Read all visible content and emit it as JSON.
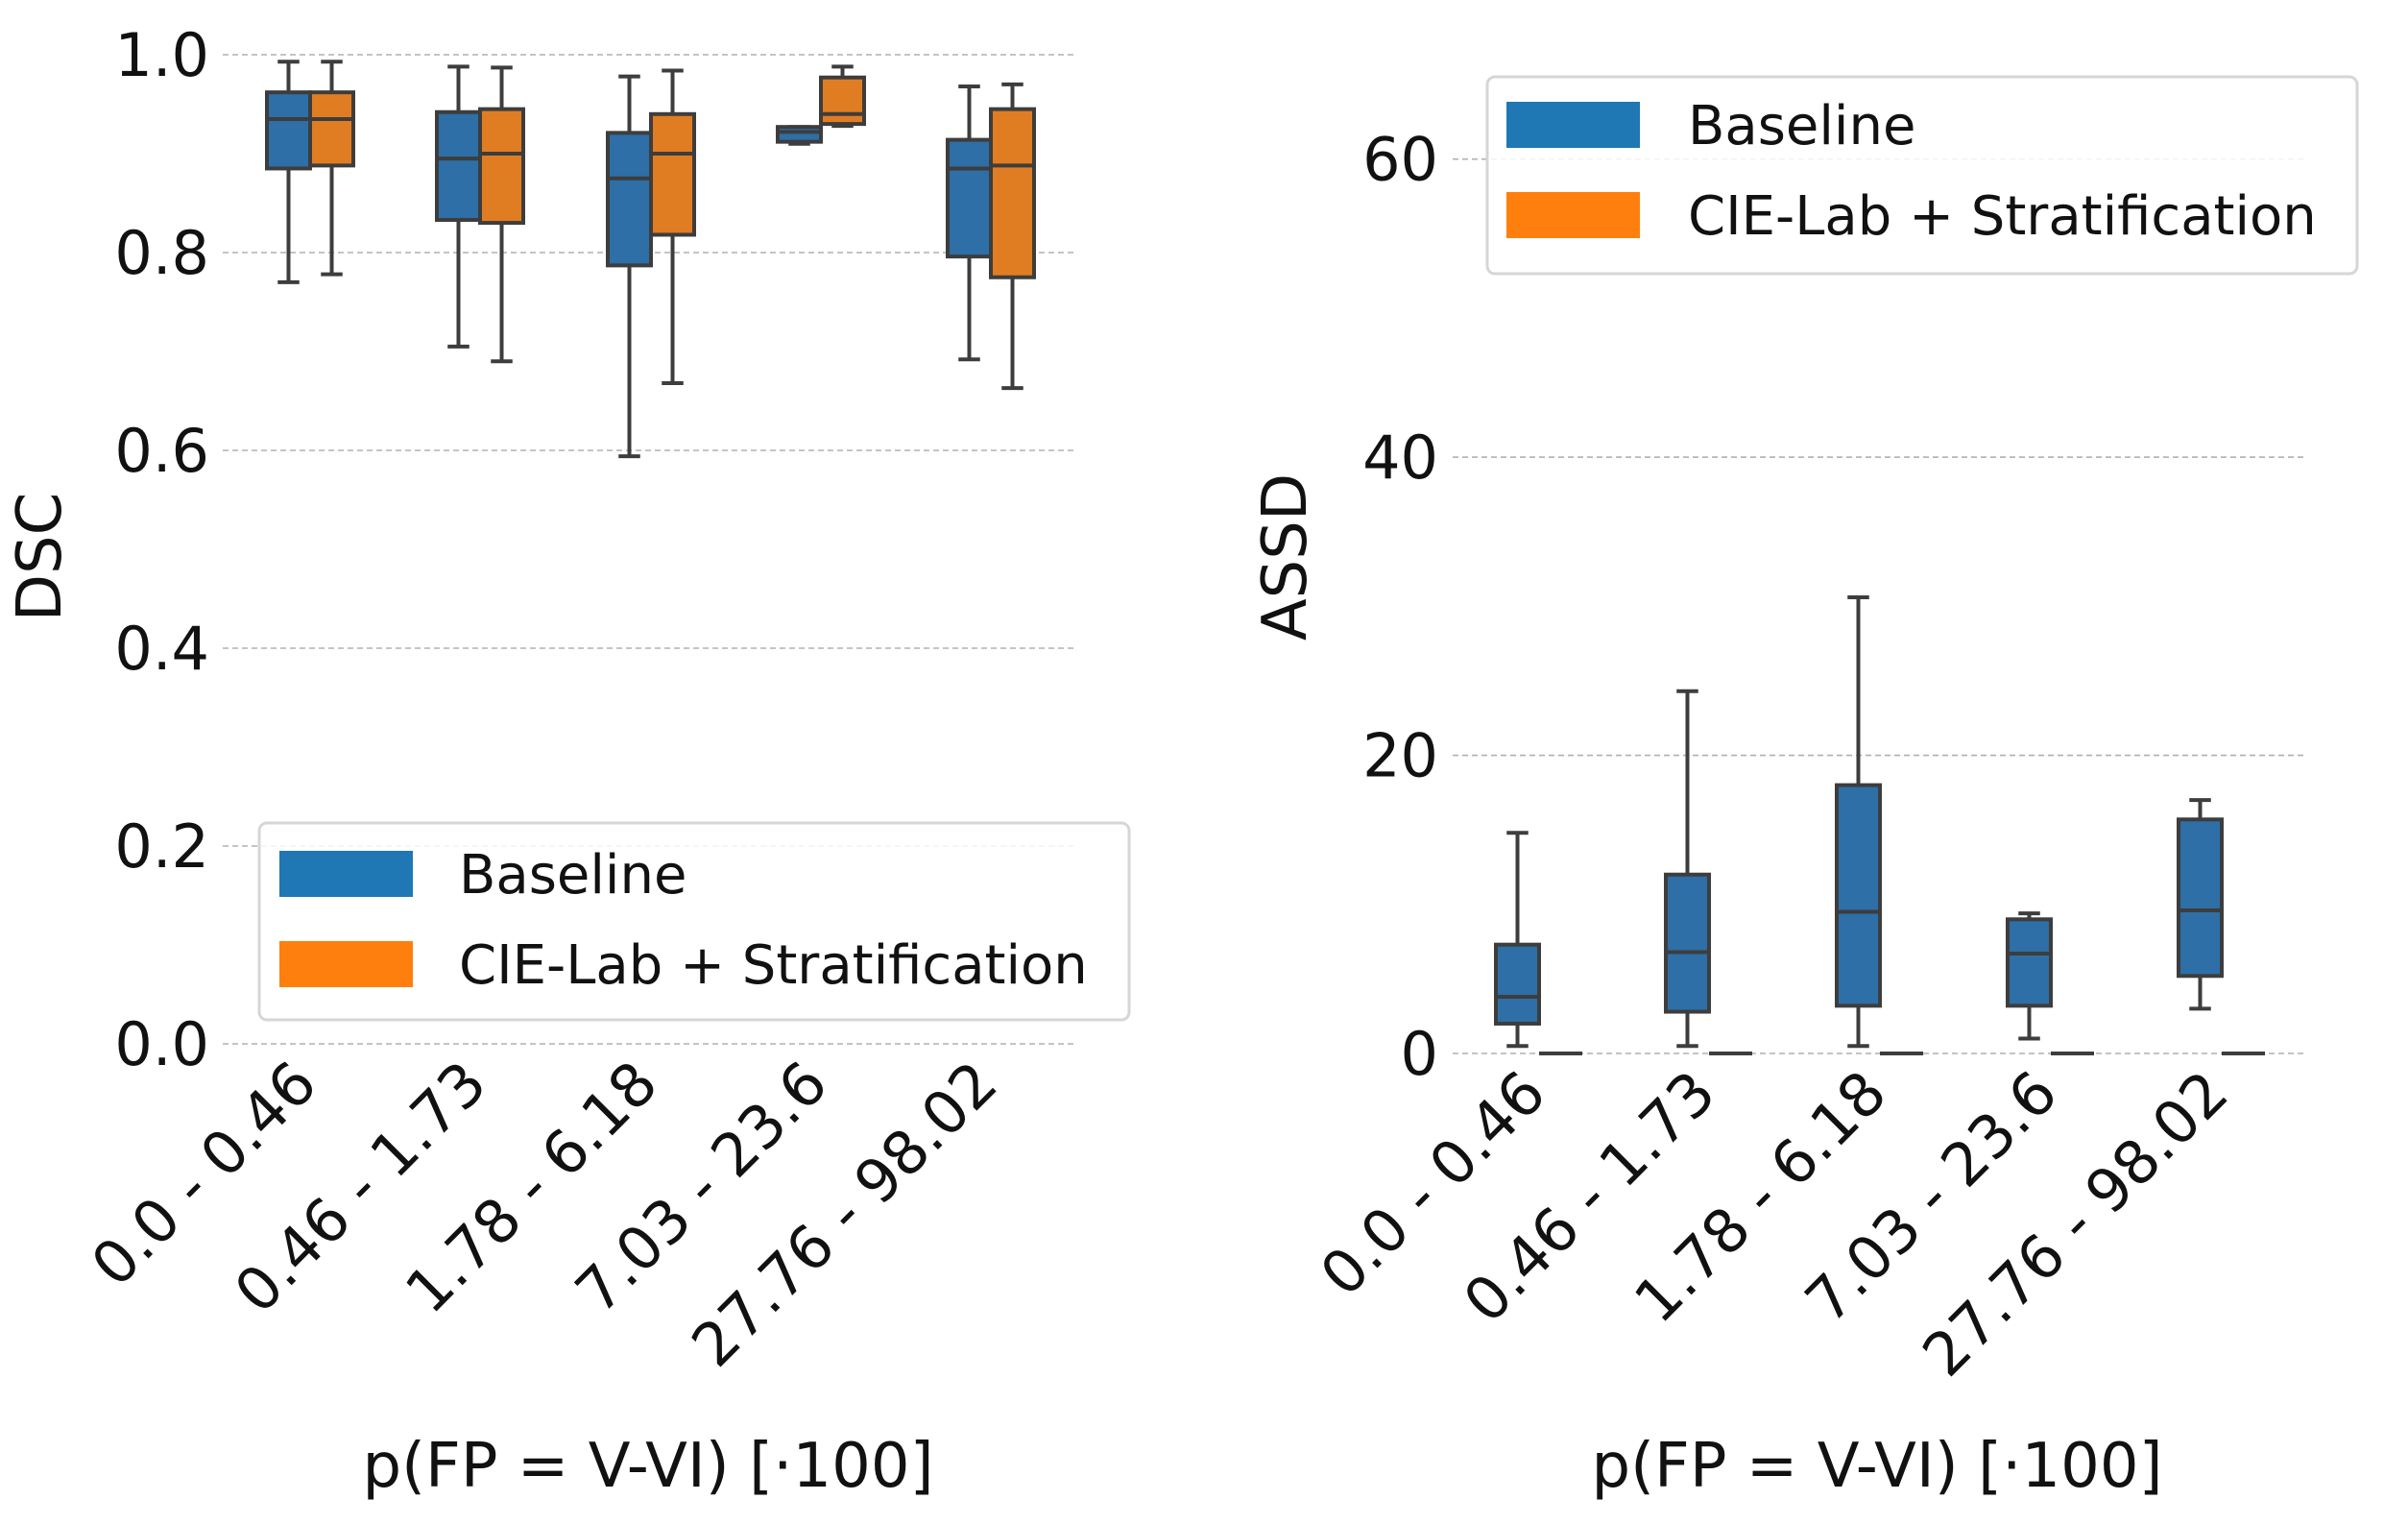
{
  "chart_data": [
    {
      "type": "box",
      "ylabel": "DSC",
      "xlabel": "p(FP = V-VI) [·100]",
      "categories": [
        "0.0 - 0.46",
        "0.46 - 1.73",
        "1.78 - 6.18",
        "7.03 - 23.6",
        "27.76 - 98.02"
      ],
      "ylim": [
        0.0,
        1.0
      ],
      "yticks": [
        "0.0",
        "0.2",
        "0.4",
        "0.6",
        "0.8",
        "1.0"
      ],
      "grid": true,
      "legend_position": "lower-right",
      "series": [
        {
          "name": "Baseline",
          "color": "#2d6fa6",
          "boxes": [
            {
              "whislo": 0.77,
              "q1": 0.885,
              "med": 0.935,
              "q3": 0.962,
              "whishi": 0.993
            },
            {
              "whislo": 0.705,
              "q1": 0.833,
              "med": 0.895,
              "q3": 0.942,
              "whishi": 0.988
            },
            {
              "whislo": 0.594,
              "q1": 0.787,
              "med": 0.875,
              "q3": 0.921,
              "whishi": 0.978
            },
            {
              "whislo": 0.91,
              "q1": 0.912,
              "med": 0.922,
              "q3": 0.927,
              "whishi": 0.927
            },
            {
              "whislo": 0.692,
              "q1": 0.796,
              "med": 0.885,
              "q3": 0.914,
              "whishi": 0.968
            }
          ]
        },
        {
          "name": "CIE-Lab + Stratification",
          "color": "#e07d22",
          "boxes": [
            {
              "whislo": 0.778,
              "q1": 0.888,
              "med": 0.935,
              "q3": 0.962,
              "whishi": 0.993
            },
            {
              "whislo": 0.69,
              "q1": 0.83,
              "med": 0.9,
              "q3": 0.945,
              "whishi": 0.987
            },
            {
              "whislo": 0.668,
              "q1": 0.818,
              "med": 0.9,
              "q3": 0.94,
              "whishi": 0.984
            },
            {
              "whislo": 0.928,
              "q1": 0.93,
              "med": 0.94,
              "q3": 0.977,
              "whishi": 0.988
            },
            {
              "whislo": 0.663,
              "q1": 0.775,
              "med": 0.888,
              "q3": 0.945,
              "whishi": 0.97
            }
          ]
        }
      ]
    },
    {
      "type": "box",
      "ylabel": "ASSD",
      "xlabel": "p(FP = V-VI) [·100]",
      "categories": [
        "0.0 - 0.46",
        "0.46 - 1.73",
        "1.78 - 6.18",
        "7.03 - 23.6",
        "27.76 - 98.02"
      ],
      "ylim": [
        0,
        67
      ],
      "yticks": [
        "0",
        "20",
        "40",
        "60"
      ],
      "grid": true,
      "legend_position": "upper-right",
      "series": [
        {
          "name": "Baseline",
          "color": "#2d6fa6",
          "boxes": [
            {
              "whislo": 0.5,
              "q1": 2.0,
              "med": 3.8,
              "q3": 7.3,
              "whishi": 14.8
            },
            {
              "whislo": 0.5,
              "q1": 2.8,
              "med": 6.8,
              "q3": 12.0,
              "whishi": 24.3
            },
            {
              "whislo": 0.5,
              "q1": 3.2,
              "med": 9.5,
              "q3": 18.0,
              "whishi": 30.6
            },
            {
              "whislo": 1.0,
              "q1": 3.2,
              "med": 6.7,
              "q3": 9.0,
              "whishi": 9.4
            },
            {
              "whislo": 3.0,
              "q1": 5.2,
              "med": 9.6,
              "q3": 15.7,
              "whishi": 17.0
            }
          ]
        },
        {
          "name": "CIE-Lab + Stratification",
          "color": "#e07d22",
          "boxes": [
            {
              "whislo": 0,
              "q1": 0,
              "med": 0,
              "q3": 0,
              "whishi": 0
            },
            {
              "whislo": 0,
              "q1": 0,
              "med": 0,
              "q3": 0,
              "whishi": 0
            },
            {
              "whislo": 0,
              "q1": 0,
              "med": 0,
              "q3": 0,
              "whishi": 0
            },
            {
              "whislo": 0,
              "q1": 0,
              "med": 0,
              "q3": 0,
              "whishi": 0
            },
            {
              "whislo": 0,
              "q1": 0,
              "med": 0,
              "q3": 0,
              "whishi": 0
            }
          ]
        }
      ]
    }
  ],
  "legend_patch_colors": {
    "Baseline": "#1f77b4",
    "CIE-Lab + Stratification": "#ff7f0e"
  }
}
